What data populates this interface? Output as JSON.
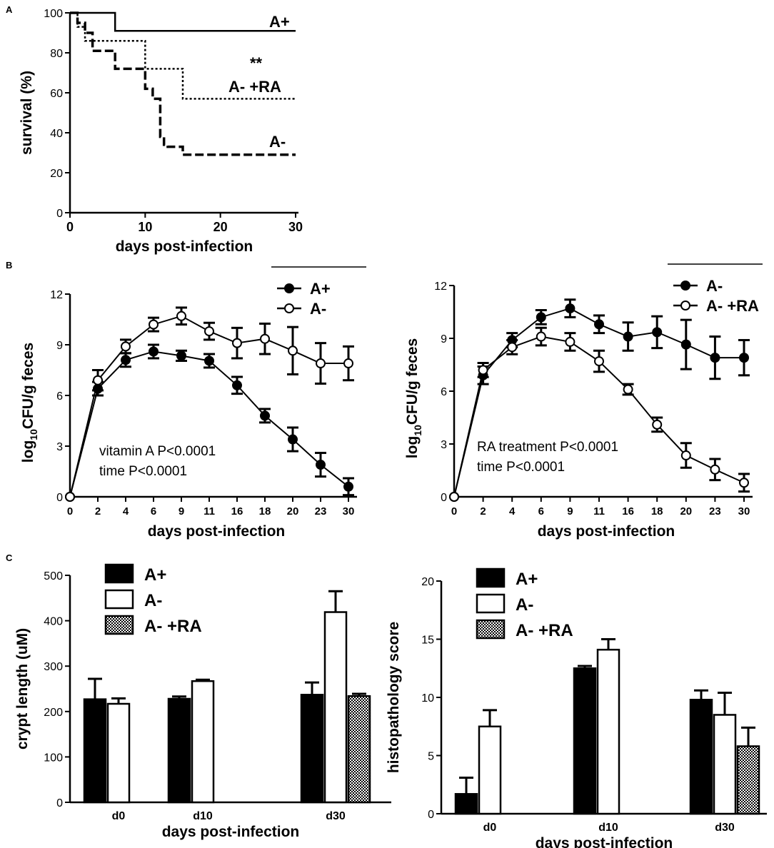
{
  "panel_letters": [
    "A",
    "B",
    "C"
  ],
  "chart_data": [
    {
      "id": "A",
      "type": "line",
      "step": true,
      "xlabel": "days post-infection",
      "ylabel": "survival (%)",
      "xlim": [
        0,
        30
      ],
      "ylim": [
        0,
        100
      ],
      "xticks": [
        0,
        10,
        20,
        30
      ],
      "yticks": [
        0,
        20,
        40,
        60,
        80,
        100
      ],
      "significance": "**",
      "series": [
        {
          "name": "A+",
          "style": "solid",
          "x": [
            0,
            6,
            30
          ],
          "y": [
            100,
            91,
            91
          ]
        },
        {
          "name": "A- +RA",
          "style": "dotted",
          "x": [
            0,
            1,
            2,
            3,
            10,
            15,
            30
          ],
          "y": [
            100,
            93,
            86,
            86,
            72,
            57,
            57
          ]
        },
        {
          "name": "A-",
          "style": "dashed",
          "x": [
            0,
            1,
            2,
            3,
            6,
            10,
            11,
            12,
            12.5,
            13,
            15,
            30
          ],
          "y": [
            100,
            95,
            90,
            81,
            72,
            62,
            57,
            38,
            34,
            33,
            29,
            29
          ]
        }
      ]
    },
    {
      "id": "B-left",
      "type": "line",
      "xlabel": "days post-infection",
      "ylabel_base": "log",
      "ylabel_sub": "10",
      "ylabel_rest": "CFU/g feces",
      "categories": [
        "0",
        "2",
        "4",
        "6",
        "9",
        "11",
        "16",
        "18",
        "20",
        "23",
        "30"
      ],
      "ylim": [
        0,
        12
      ],
      "yticks": [
        0,
        3,
        6,
        9,
        12
      ],
      "annotations": [
        "vitamin A P<0.0001",
        "time P<0.0001"
      ],
      "series": [
        {
          "name": "A+",
          "marker": "filled",
          "values": [
            0,
            6.4,
            8.1,
            8.6,
            8.35,
            8.05,
            6.6,
            4.8,
            3.4,
            1.9,
            0.6
          ],
          "errors": [
            0,
            0.4,
            0.4,
            0.4,
            0.3,
            0.4,
            0.5,
            0.4,
            0.7,
            0.7,
            0.5
          ]
        },
        {
          "name": "A-",
          "marker": "open",
          "values": [
            0,
            6.9,
            8.9,
            10.2,
            10.7,
            9.8,
            9.1,
            9.35,
            8.65,
            7.9,
            7.9
          ],
          "errors": [
            0,
            0.6,
            0.4,
            0.4,
            0.5,
            0.5,
            0.9,
            0.9,
            1.4,
            1.2,
            1.0
          ]
        }
      ]
    },
    {
      "id": "B-right",
      "type": "line",
      "xlabel": "days post-infection",
      "ylabel_base": "log",
      "ylabel_sub": "10",
      "ylabel_rest": "CFU/g feces",
      "categories": [
        "0",
        "2",
        "4",
        "6",
        "9",
        "11",
        "16",
        "18",
        "20",
        "23",
        "30"
      ],
      "ylim": [
        0,
        12
      ],
      "yticks": [
        0,
        3,
        6,
        9,
        12
      ],
      "annotations": [
        "RA treatment P<0.0001",
        "time P<0.0001"
      ],
      "series": [
        {
          "name": "A-",
          "marker": "filled",
          "values": [
            0,
            6.9,
            8.9,
            10.2,
            10.7,
            9.8,
            9.1,
            9.35,
            8.65,
            7.9,
            7.9
          ],
          "errors": [
            0,
            0.5,
            0.4,
            0.4,
            0.5,
            0.5,
            0.8,
            0.9,
            1.4,
            1.2,
            1.0
          ]
        },
        {
          "name": "A- +RA",
          "marker": "open",
          "values": [
            0,
            7.2,
            8.5,
            9.1,
            8.8,
            7.7,
            6.1,
            4.1,
            2.35,
            1.55,
            0.8
          ],
          "errors": [
            0,
            0.4,
            0.4,
            0.5,
            0.5,
            0.6,
            0.3,
            0.4,
            0.7,
            0.6,
            0.5
          ]
        }
      ]
    },
    {
      "id": "C-left",
      "type": "bar",
      "xlabel": "days post-infection",
      "ylabel": "crypt length (uM)",
      "categories": [
        "d0",
        "d10",
        "d30"
      ],
      "ylim": [
        0,
        500
      ],
      "yticks": [
        0,
        100,
        200,
        300,
        400,
        500
      ],
      "series": [
        {
          "name": "A+",
          "fill": "solid",
          "values": [
            227,
            228,
            237
          ],
          "errors": [
            45,
            5,
            27
          ]
        },
        {
          "name": "A-",
          "fill": "open",
          "values": [
            217,
            267,
            419
          ],
          "errors": [
            12,
            3,
            46
          ]
        },
        {
          "name": "A- +RA",
          "fill": "pattern",
          "values": [
            null,
            null,
            234
          ],
          "errors": [
            null,
            null,
            5
          ]
        }
      ]
    },
    {
      "id": "C-right",
      "type": "bar",
      "xlabel": "days post-infection",
      "ylabel": "histopathology score",
      "categories": [
        "d0",
        "d10",
        "d30"
      ],
      "ylim": [
        0,
        20
      ],
      "yticks": [
        0,
        5,
        10,
        15,
        20
      ],
      "series": [
        {
          "name": "A+",
          "fill": "solid",
          "values": [
            1.7,
            12.5,
            9.8
          ],
          "errors": [
            1.4,
            0.2,
            0.8
          ]
        },
        {
          "name": "A-",
          "fill": "open",
          "values": [
            7.5,
            14.1,
            8.5
          ],
          "errors": [
            1.4,
            0.9,
            1.9
          ]
        },
        {
          "name": "A- +RA",
          "fill": "pattern",
          "values": [
            null,
            null,
            5.8
          ],
          "errors": [
            null,
            null,
            1.6
          ]
        }
      ]
    }
  ]
}
